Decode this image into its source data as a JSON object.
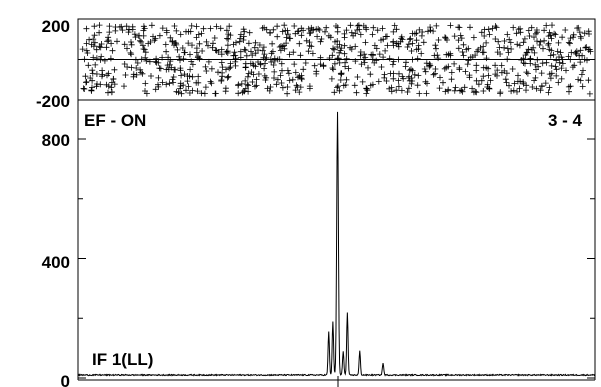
{
  "chart_data": [
    {
      "type": "scatter",
      "role": "residual-panel",
      "marker": "plus",
      "ylim": [
        -200,
        200
      ],
      "ytick_labels": [
        "200",
        "-200"
      ],
      "zero_line": true,
      "grid": false,
      "point_count": 900,
      "noise_range": [
        -170,
        170
      ]
    },
    {
      "type": "line",
      "role": "spectrum-panel",
      "ylim": [
        0,
        900
      ],
      "ytick_labels": [
        "0",
        "400",
        "800"
      ],
      "annotations": {
        "top_left": "EF - ON",
        "top_right": "3 - 4",
        "bottom_left": "IF 1(LL)"
      },
      "grid": false,
      "x_range": [
        0,
        1000
      ],
      "center_marker_x": 500,
      "series": [
        {
          "baseline": 10,
          "noise": 2,
          "peaks": [
            {
              "x": 502,
              "height": 880
            },
            {
              "x": 485,
              "height": 145
            },
            {
              "x": 493,
              "height": 180
            },
            {
              "x": 513,
              "height": 80
            },
            {
              "x": 521,
              "height": 210
            },
            {
              "x": 545,
              "height": 80
            },
            {
              "x": 590,
              "height": 40
            }
          ]
        }
      ]
    }
  ]
}
